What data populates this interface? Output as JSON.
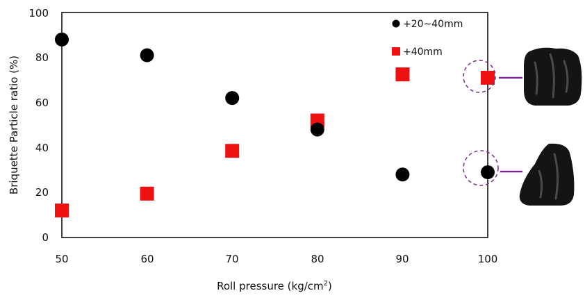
{
  "chart_data": {
    "type": "scatter",
    "title": "",
    "xlabel": "Roll pressure (kg/cm",
    "xlabel_sup": "2",
    "xlabel_close": ")",
    "ylabel": "Briquette Particle ratio (%)",
    "xlim": [
      50,
      100
    ],
    "ylim": [
      0,
      100
    ],
    "x_ticks": [
      "50",
      "60",
      "70",
      "80",
      "90",
      "100"
    ],
    "y_ticks": [
      "0",
      "20",
      "40",
      "60",
      "80",
      "100"
    ],
    "grid": false,
    "legend_position": "top-right",
    "series": [
      {
        "name": "+20~40mm",
        "marker": "circle",
        "color": "#000000",
        "x": [
          50,
          60,
          70,
          80,
          90,
          100
        ],
        "y": [
          88,
          81,
          62,
          48,
          28,
          29
        ]
      },
      {
        "name": "+40mm",
        "marker": "square",
        "color": "#ee1111",
        "x": [
          50,
          60,
          70,
          80,
          90,
          100
        ],
        "y": [
          12,
          19.5,
          38.5,
          52,
          72.5,
          71
        ]
      }
    ],
    "annotations": [
      {
        "target": "+40mm at 100",
        "shape": "dashed-circle",
        "color": "#7b2a8e",
        "image": "briquette-photo-large"
      },
      {
        "target": "+20~40mm at 100",
        "shape": "dashed-circle",
        "color": "#7b2a8e",
        "image": "briquette-photo-small"
      }
    ]
  }
}
